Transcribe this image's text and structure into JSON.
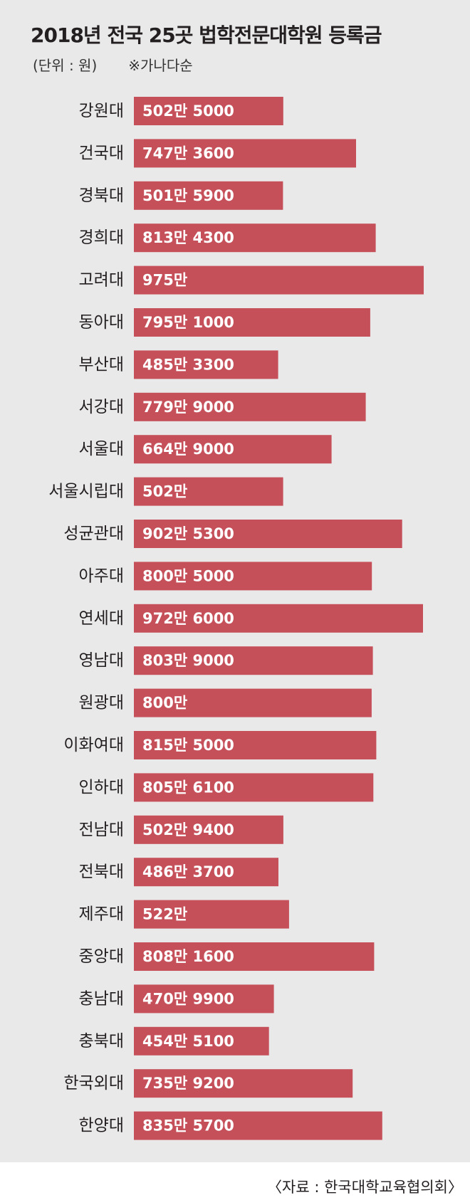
{
  "title": "2018년 전국 25곳 법학전문대학원 등록금",
  "unit_note": "(단위 : 원)",
  "sort_note": "※가나다순",
  "source": "〈자료 : 한국대학교육협의회〉",
  "colors": {
    "bar": "#c5505a",
    "panel": "#e9e9e9",
    "bar_text": "#ffffff",
    "text": "#231f20"
  },
  "chart_data": {
    "type": "bar",
    "orientation": "horizontal",
    "categories": [
      "강원대",
      "건국대",
      "경북대",
      "경희대",
      "고려대",
      "동아대",
      "부산대",
      "서강대",
      "서울대",
      "서울시립대",
      "성균관대",
      "아주대",
      "연세대",
      "영남대",
      "원광대",
      "이화여대",
      "인하대",
      "전남대",
      "전북대",
      "제주대",
      "중앙대",
      "충남대",
      "충북대",
      "한국외대",
      "한양대"
    ],
    "values": [
      5025000,
      7473600,
      5015900,
      8134300,
      9750000,
      7951000,
      4853300,
      7799000,
      6649000,
      5020000,
      9025300,
      8005000,
      9726000,
      8039000,
      8000000,
      8155000,
      8056100,
      5029400,
      4863700,
      5220000,
      8081600,
      4709900,
      4545100,
      7359200,
      8355700
    ],
    "labels": [
      "502만 5000",
      "747만 3600",
      "501만 5900",
      "813만 4300",
      "975만",
      "795만 1000",
      "485만 3300",
      "779만 9000",
      "664만 9000",
      "502만",
      "902만 5300",
      "800만 5000",
      "972만 6000",
      "803만 9000",
      "800만",
      "815만 5000",
      "805만 6100",
      "502만 9400",
      "486만 3700",
      "522만",
      "808만 1600",
      "470만 9900",
      "454만 5100",
      "735만 9200",
      "835만 5700"
    ],
    "xlim": [
      0,
      9750000
    ],
    "grid": false,
    "legend": "none"
  }
}
